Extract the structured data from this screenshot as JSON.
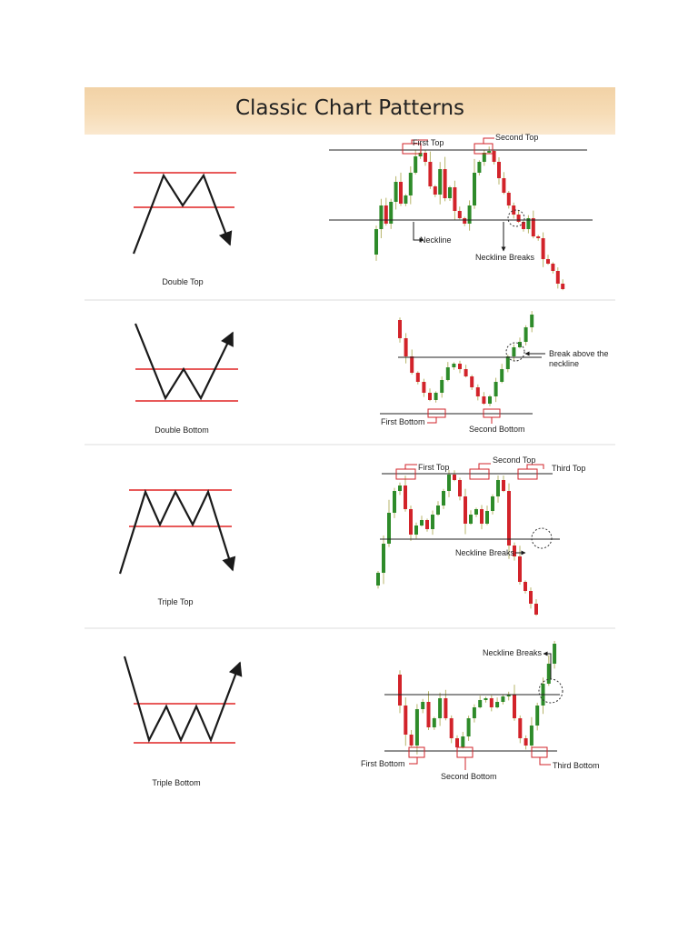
{
  "title": "Classic Chart Patterns",
  "colors": {
    "bull": "#2e8b2a",
    "bear": "#d2232a",
    "guide": "#e02424",
    "ink": "#1a1a1a",
    "band": "#f4d6ad"
  },
  "patterns": [
    {
      "name": "Double Top",
      "annotations": [
        "First Top",
        "Second Top",
        "Neckline",
        "Neckline Breaks"
      ]
    },
    {
      "name": "Double Bottom",
      "annotations": [
        "First Bottom",
        "Second Bottom",
        "Break above the neckline"
      ]
    },
    {
      "name": "Triple Top",
      "annotations": [
        "First Top",
        "Second Top",
        "Third Top",
        "Neckline Breaks"
      ]
    },
    {
      "name": "Triple Bottom",
      "annotations": [
        "Neckline Breaks",
        "First Bottom",
        "Second Bottom",
        "Third Bottom"
      ]
    }
  ]
}
